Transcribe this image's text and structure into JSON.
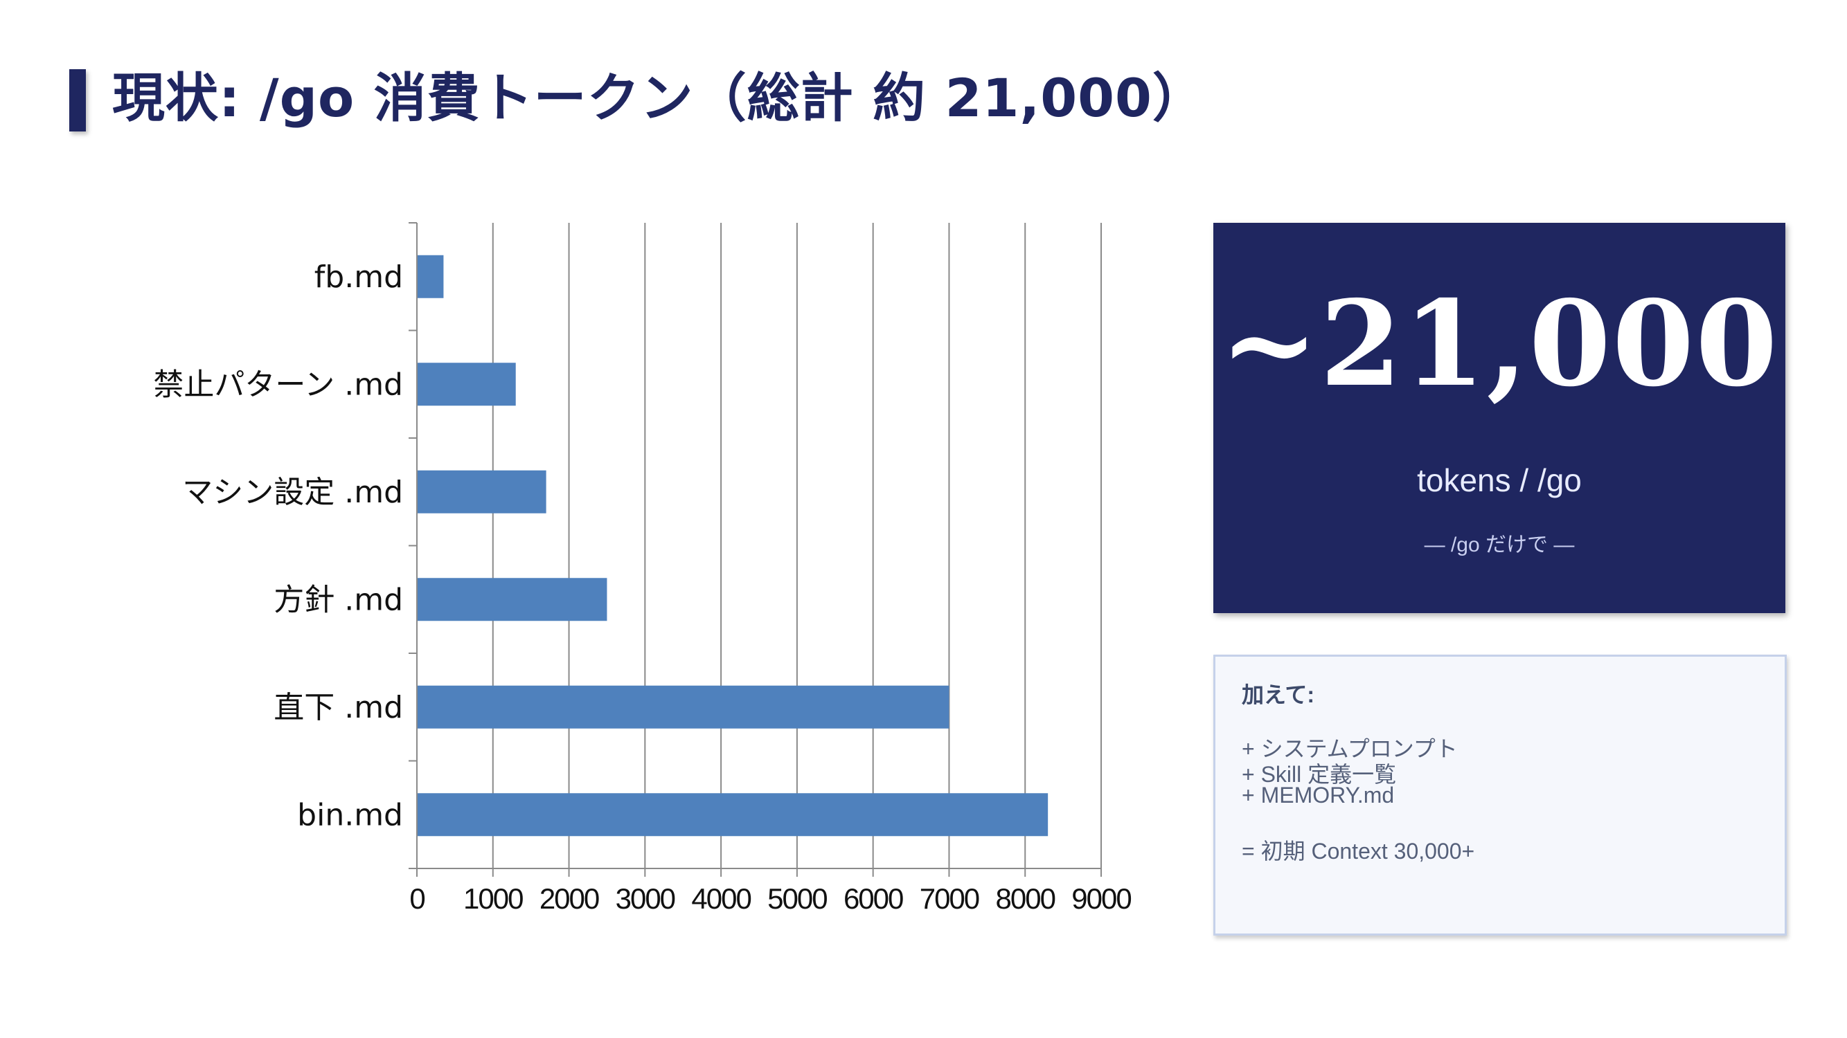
{
  "page": {
    "title": "現状: /go 消費トークン（総計 約 21,000）"
  },
  "chart_data": {
    "type": "bar",
    "orientation": "horizontal",
    "categories": [
      "fb.md",
      "禁止パターン .md",
      "マシン設定 .md",
      "方針 .md",
      "直下 .md",
      "bin.md"
    ],
    "values": [
      350,
      1300,
      1700,
      2500,
      7000,
      8300
    ],
    "xlim": [
      0,
      9000
    ],
    "xticks": [
      0,
      1000,
      2000,
      3000,
      4000,
      5000,
      6000,
      7000,
      8000,
      9000
    ],
    "grid": true,
    "bar_color": "#4f81bd"
  },
  "summary": {
    "big_number": "~21,000",
    "unit": "tokens / /go",
    "note": "— /go だけで —"
  },
  "extras": {
    "heading": "加えて:",
    "items": [
      "+ システムプロンプト",
      "+ Skill 定義一覧",
      "+ MEMORY.md"
    ],
    "total": "= 初期 Context 30,000+"
  },
  "colors": {
    "navy": "#1f2660",
    "bar": "#4f81bd"
  }
}
